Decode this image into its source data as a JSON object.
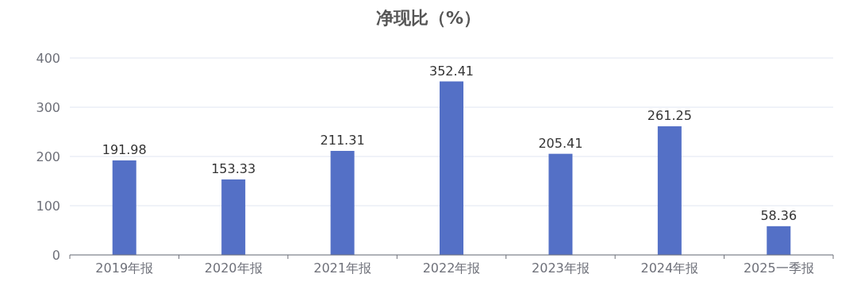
{
  "chart_data": {
    "type": "bar",
    "title": "净现比（%）",
    "categories": [
      "2019年报",
      "2020年报",
      "2021年报",
      "2022年报",
      "2023年报",
      "2024年报",
      "2025一季报"
    ],
    "values": [
      191.98,
      153.33,
      211.31,
      352.41,
      205.41,
      261.25,
      58.36
    ],
    "color": "#5470c6",
    "ylim": [
      0,
      400
    ],
    "yticks": [
      0,
      100,
      200,
      300,
      400
    ],
    "grid": "y",
    "data_labels": true
  }
}
